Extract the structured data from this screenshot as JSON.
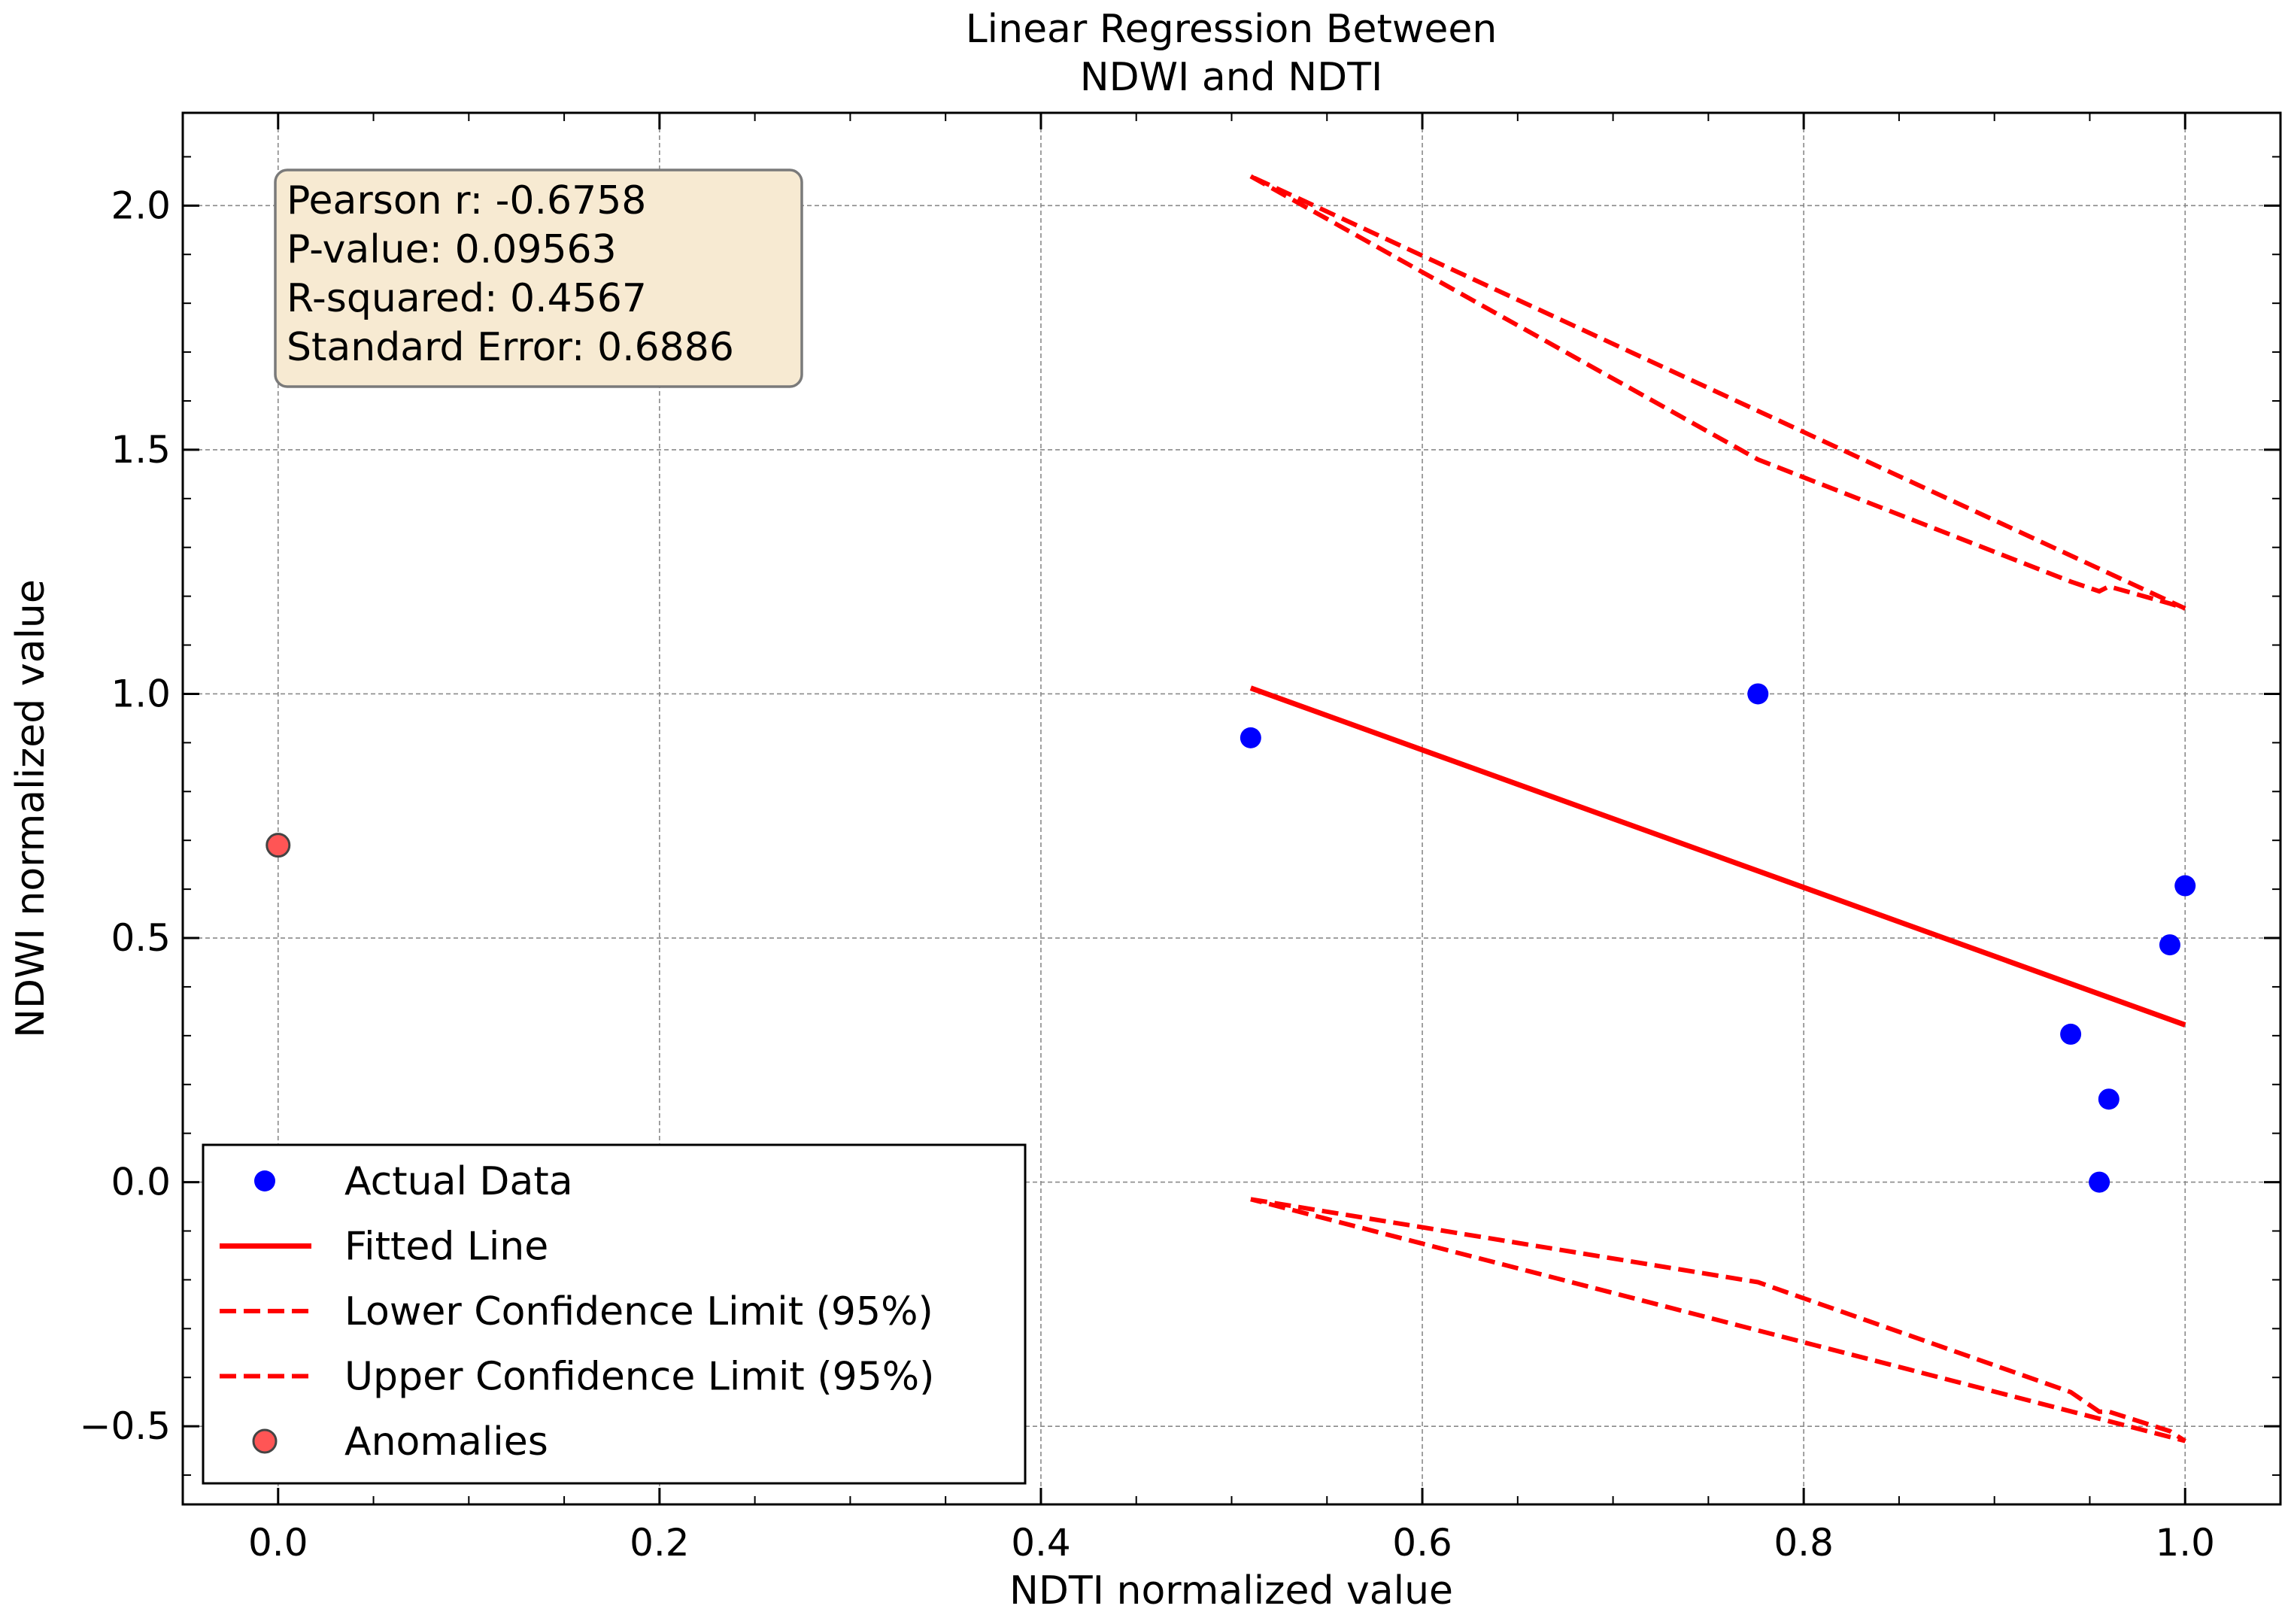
{
  "chart_data": {
    "type": "scatter",
    "title_lines": [
      "Linear Regression Between",
      "NDWI and NDTI"
    ],
    "xlabel": "NDTI normalized value",
    "ylabel": "NDWI normalized value",
    "xlim": [
      -0.05,
      1.05
    ],
    "ylim": [
      -0.66,
      2.19
    ],
    "xticks": [
      0.0,
      0.2,
      0.4,
      0.6,
      0.8,
      1.0
    ],
    "xtick_labels": [
      "0.0",
      "0.2",
      "0.4",
      "0.6",
      "0.8",
      "1.0"
    ],
    "yticks": [
      -0.5,
      0.0,
      0.5,
      1.0,
      1.5,
      2.0
    ],
    "ytick_labels": [
      "−0.5",
      "0.0",
      "0.5",
      "1.0",
      "1.5",
      "2.0"
    ],
    "grid": true,
    "legend_placement": "lower-left",
    "stats_box": [
      "Pearson r: -0.6758",
      "P-value: 0.09563",
      "R-squared: 0.4567",
      "Standard Error: 0.6886"
    ],
    "actual_data": {
      "name": "Actual Data",
      "color": "#0000ff",
      "points": [
        {
          "x": 0.51,
          "y": 0.91
        },
        {
          "x": 0.776,
          "y": 1.0
        },
        {
          "x": 0.94,
          "y": 0.303
        },
        {
          "x": 0.955,
          "y": 0.0
        },
        {
          "x": 0.96,
          "y": 0.17
        },
        {
          "x": 0.992,
          "y": 0.486
        },
        {
          "x": 1.0,
          "y": 0.607
        }
      ]
    },
    "fitted_line": {
      "name": "Fitted Line",
      "color": "#ff0000",
      "points": [
        {
          "x": 0.51,
          "y": 1.012
        },
        {
          "x": 1.0,
          "y": 0.322
        }
      ]
    },
    "lower_confidence": {
      "name": "Lower Confidence Limit (95%)",
      "color": "#ff0000",
      "points": [
        {
          "x": 0.51,
          "y": -0.035
        },
        {
          "x": 0.776,
          "y": -0.205
        },
        {
          "x": 0.94,
          "y": -0.43
        },
        {
          "x": 0.955,
          "y": -0.47
        },
        {
          "x": 0.96,
          "y": -0.47
        },
        {
          "x": 0.992,
          "y": -0.51
        },
        {
          "x": 1.0,
          "y": -0.53
        },
        {
          "x": 0.51,
          "y": -0.035
        }
      ]
    },
    "upper_confidence": {
      "name": "Upper Confidence Limit (95%)",
      "color": "#ff0000",
      "points": [
        {
          "x": 0.51,
          "y": 2.06
        },
        {
          "x": 0.776,
          "y": 1.48
        },
        {
          "x": 0.94,
          "y": 1.23
        },
        {
          "x": 0.955,
          "y": 1.21
        },
        {
          "x": 0.96,
          "y": 1.22
        },
        {
          "x": 0.992,
          "y": 1.185
        },
        {
          "x": 1.0,
          "y": 1.175
        },
        {
          "x": 0.51,
          "y": 2.06
        }
      ]
    },
    "anomalies": {
      "name": "Anomalies",
      "color": "#ff5555",
      "edge_color": "#444444",
      "points": [
        {
          "x": 0.0,
          "y": 0.69
        }
      ]
    }
  }
}
